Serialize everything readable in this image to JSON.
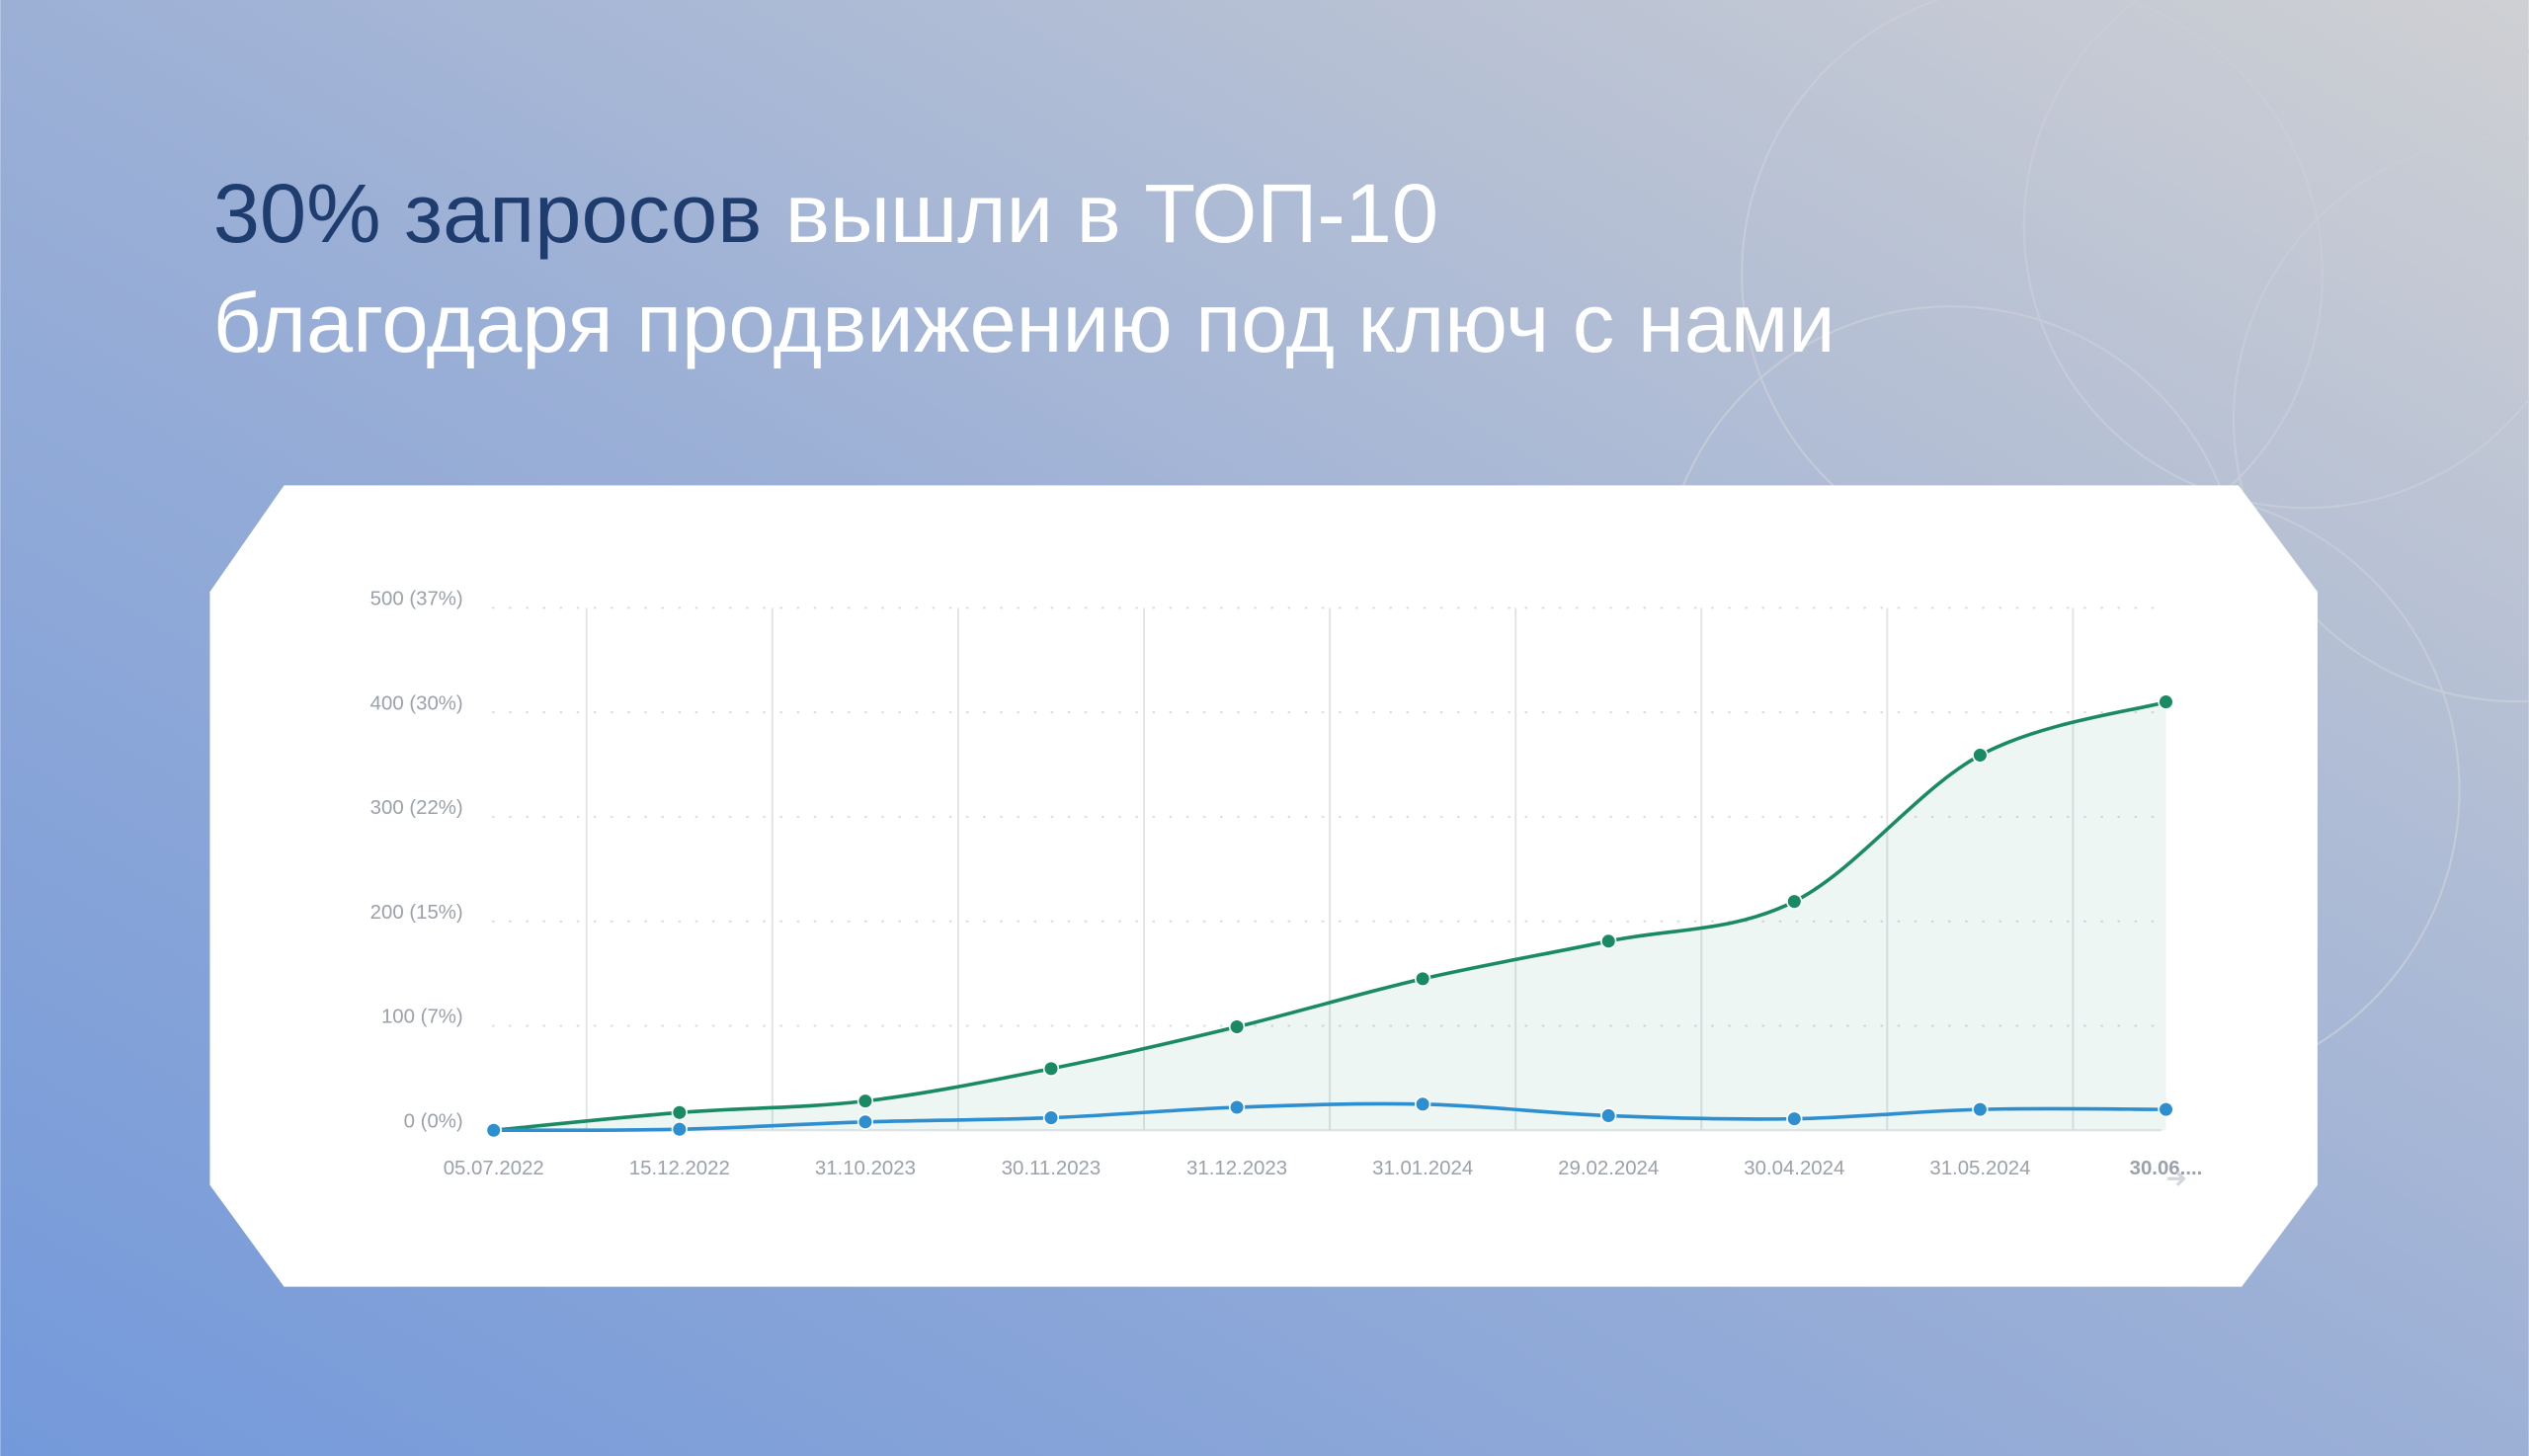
{
  "header": {
    "highlight": "30% запросов",
    "rest": "вышли в ТОП-10",
    "line2": "благодаря продвижению под ключ с нами"
  },
  "chart_data": {
    "type": "line",
    "categories": [
      "05.07.2022",
      "15.12.2022",
      "31.10.2023",
      "30.11.2023",
      "31.12.2023",
      "31.01.2024",
      "29.02.2024",
      "30.04.2024",
      "31.05.2024",
      "30.06...."
    ],
    "series": [
      {
        "color": "#1a8a63",
        "values": [
          0,
          17,
          28,
          59,
          99,
          145,
          181,
          219,
          359,
          410
        ],
        "area": true
      },
      {
        "color": "#2e8fd0",
        "values": [
          0,
          1,
          8,
          12,
          22,
          25,
          14,
          11,
          20,
          20
        ]
      }
    ],
    "ylim": [
      0,
      500
    ],
    "yticks": [
      {
        "value": 0,
        "label": "0 (0%)"
      },
      {
        "value": 100,
        "label": "100 (7%)"
      },
      {
        "value": 200,
        "label": "200 (15%)"
      },
      {
        "value": 300,
        "label": "300 (22%)"
      },
      {
        "value": 400,
        "label": "400 (30%)"
      },
      {
        "value": 500,
        "label": "500 (37%)"
      }
    ],
    "grid": true
  }
}
